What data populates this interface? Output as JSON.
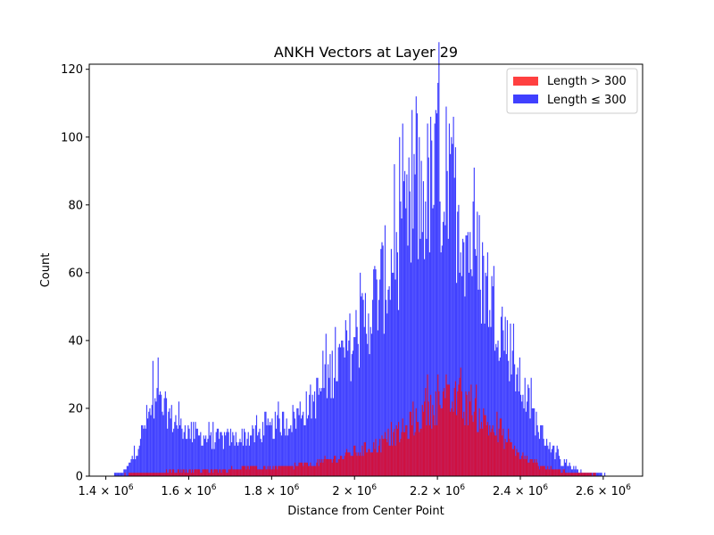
{
  "chart_data": {
    "type": "histogram",
    "title": "ANKH Vectors at Layer 29",
    "xlabel": "Distance from Center Point",
    "ylabel": "Count",
    "xlim": [
      1360000,
      2695000
    ],
    "ylim": [
      0,
      121.5
    ],
    "x_ticks": [
      {
        "value": 1400000,
        "label": "1.4 × 10",
        "exp": "6"
      },
      {
        "value": 1600000,
        "label": "1.6 × 10",
        "exp": "6"
      },
      {
        "value": 1800000,
        "label": "1.8 × 10",
        "exp": "6"
      },
      {
        "value": 2000000,
        "label": "2 × 10",
        "exp": "6"
      },
      {
        "value": 2200000,
        "label": "2.2 × 10",
        "exp": "6"
      },
      {
        "value": 2400000,
        "label": "2.4 × 10",
        "exp": "6"
      },
      {
        "value": 2600000,
        "label": "2.6 × 10",
        "exp": "6"
      }
    ],
    "y_ticks": [
      0,
      20,
      40,
      60,
      80,
      100,
      120
    ],
    "legend": {
      "placement": "upper right"
    },
    "bin_width": 2500,
    "series": [
      {
        "name": "Length > 300",
        "color": "#ff0000",
        "alpha": 0.75,
        "range": [
          1420000,
          2650000
        ],
        "envelope": [
          [
            1420000,
            0.3
          ],
          [
            1500000,
            1
          ],
          [
            1600000,
            1.5
          ],
          [
            1700000,
            2
          ],
          [
            1800000,
            2.5
          ],
          [
            1900000,
            3.5
          ],
          [
            1950000,
            5
          ],
          [
            2000000,
            7
          ],
          [
            2050000,
            9
          ],
          [
            2100000,
            12
          ],
          [
            2150000,
            16
          ],
          [
            2200000,
            21
          ],
          [
            2250000,
            22
          ],
          [
            2300000,
            18
          ],
          [
            2350000,
            12
          ],
          [
            2400000,
            6
          ],
          [
            2450000,
            3
          ],
          [
            2500000,
            1.5
          ],
          [
            2550000,
            0.7
          ],
          [
            2650000,
            0
          ]
        ],
        "peaks": [
          {
            "x": 2175000,
            "y": 30
          },
          {
            "x": 2200000,
            "y": 30
          },
          {
            "x": 2255000,
            "y": 32
          }
        ]
      },
      {
        "name": "Length ≤ 300",
        "color": "#0000ff",
        "alpha": 0.75,
        "range": [
          1400000,
          2640000
        ],
        "envelope": [
          [
            1400000,
            0
          ],
          [
            1440000,
            1
          ],
          [
            1460000,
            4
          ],
          [
            1480000,
            10
          ],
          [
            1500000,
            17
          ],
          [
            1520000,
            21
          ],
          [
            1540000,
            20
          ],
          [
            1560000,
            17
          ],
          [
            1580000,
            15
          ],
          [
            1600000,
            13
          ],
          [
            1650000,
            11
          ],
          [
            1700000,
            11
          ],
          [
            1750000,
            12
          ],
          [
            1800000,
            14
          ],
          [
            1850000,
            17
          ],
          [
            1900000,
            22
          ],
          [
            1950000,
            32
          ],
          [
            2000000,
            40
          ],
          [
            2050000,
            52
          ],
          [
            2100000,
            65
          ],
          [
            2150000,
            80
          ],
          [
            2200000,
            88
          ],
          [
            2250000,
            78
          ],
          [
            2300000,
            62
          ],
          [
            2350000,
            47
          ],
          [
            2400000,
            27
          ],
          [
            2450000,
            13
          ],
          [
            2500000,
            4
          ],
          [
            2550000,
            1
          ],
          [
            2640000,
            0
          ]
        ],
        "peaks": [
          {
            "x": 1512500,
            "y": 34
          },
          {
            "x": 1525000,
            "y": 35
          },
          {
            "x": 2150000,
            "y": 107
          },
          {
            "x": 2200000,
            "y": 116
          },
          {
            "x": 2237500,
            "y": 106
          },
          {
            "x": 2300000,
            "y": 77
          }
        ]
      }
    ]
  }
}
